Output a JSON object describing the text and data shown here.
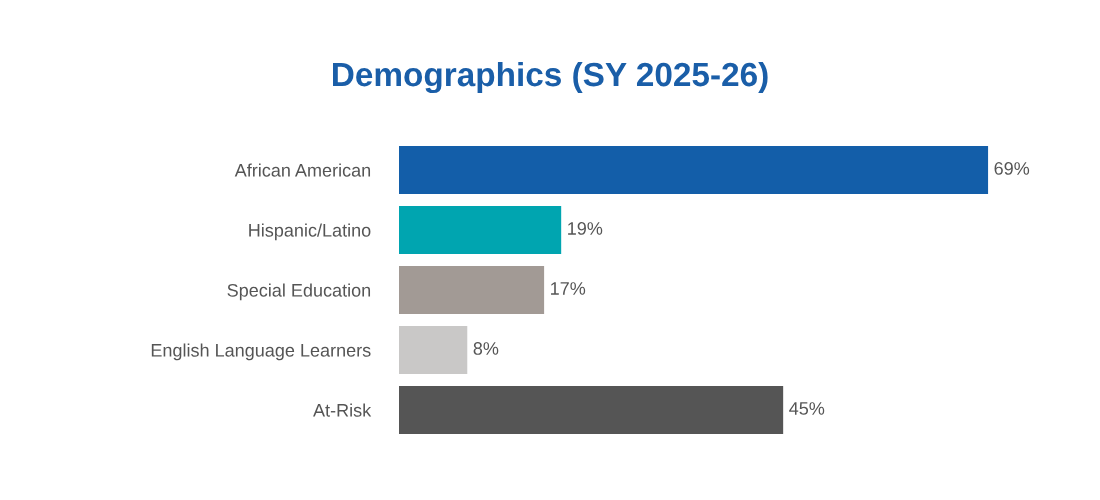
{
  "chart_data": {
    "type": "bar",
    "orientation": "horizontal",
    "title": "Demographics (SY 2025-26)",
    "categories": [
      "African American",
      "Hispanic/Latino",
      "Special Education",
      "English Language Learners",
      "At-Risk"
    ],
    "values": [
      69,
      19,
      17,
      8,
      45
    ],
    "colors": [
      "#135ea9",
      "#00a5b0",
      "#a29a95",
      "#c9c8c7",
      "#555555"
    ],
    "value_labels": [
      "69%",
      "19%",
      "17%",
      "8%",
      "45%"
    ],
    "grid": false,
    "legend": false,
    "tick_labels": "y"
  }
}
